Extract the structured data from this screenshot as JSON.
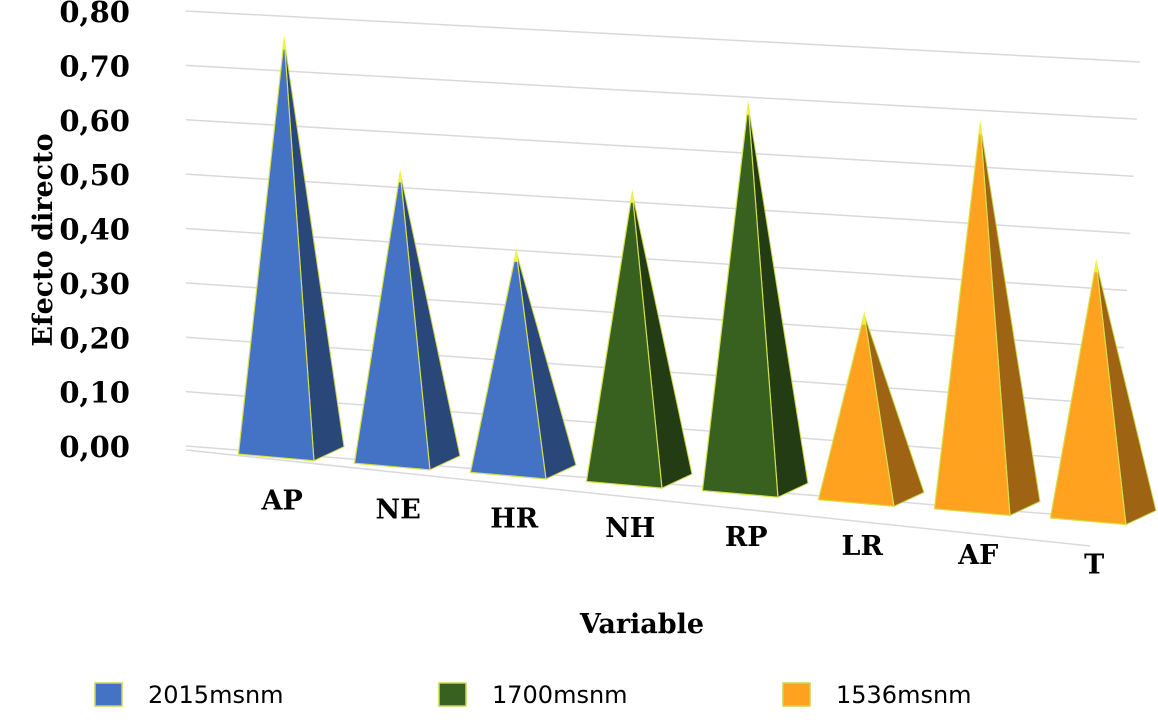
{
  "chart_data": {
    "type": "bar",
    "style": "3d-pyramid",
    "xlabel": "Variable",
    "ylabel": "Efecto directo",
    "ylim": [
      0,
      0.8
    ],
    "yticks": [
      "0,00",
      "0,10",
      "0,20",
      "0,30",
      "0,40",
      "0,50",
      "0,60",
      "0,70",
      "0,80"
    ],
    "grid": true,
    "legend_position": "bottom",
    "categories": [
      "AP",
      "NE",
      "HR",
      "NH",
      "RP",
      "LR",
      "AF",
      "T"
    ],
    "values": [
      0.75,
      0.52,
      0.39,
      0.51,
      0.68,
      0.32,
      0.67,
      0.44
    ],
    "bar_series": [
      "2015msnm",
      "2015msnm",
      "2015msnm",
      "1700msnm",
      "1700msnm",
      "1536msnm",
      "1536msnm",
      "1536msnm"
    ],
    "series": [
      {
        "name": "2015msnm",
        "color": "#4472C4",
        "categories": [
          "AP",
          "NE",
          "HR"
        ]
      },
      {
        "name": "1700msnm",
        "color": "#38611F",
        "categories": [
          "NH",
          "RP"
        ]
      },
      {
        "name": "1536msnm",
        "color": "#FFA21F",
        "categories": [
          "LR",
          "AF",
          "T"
        ]
      }
    ]
  }
}
